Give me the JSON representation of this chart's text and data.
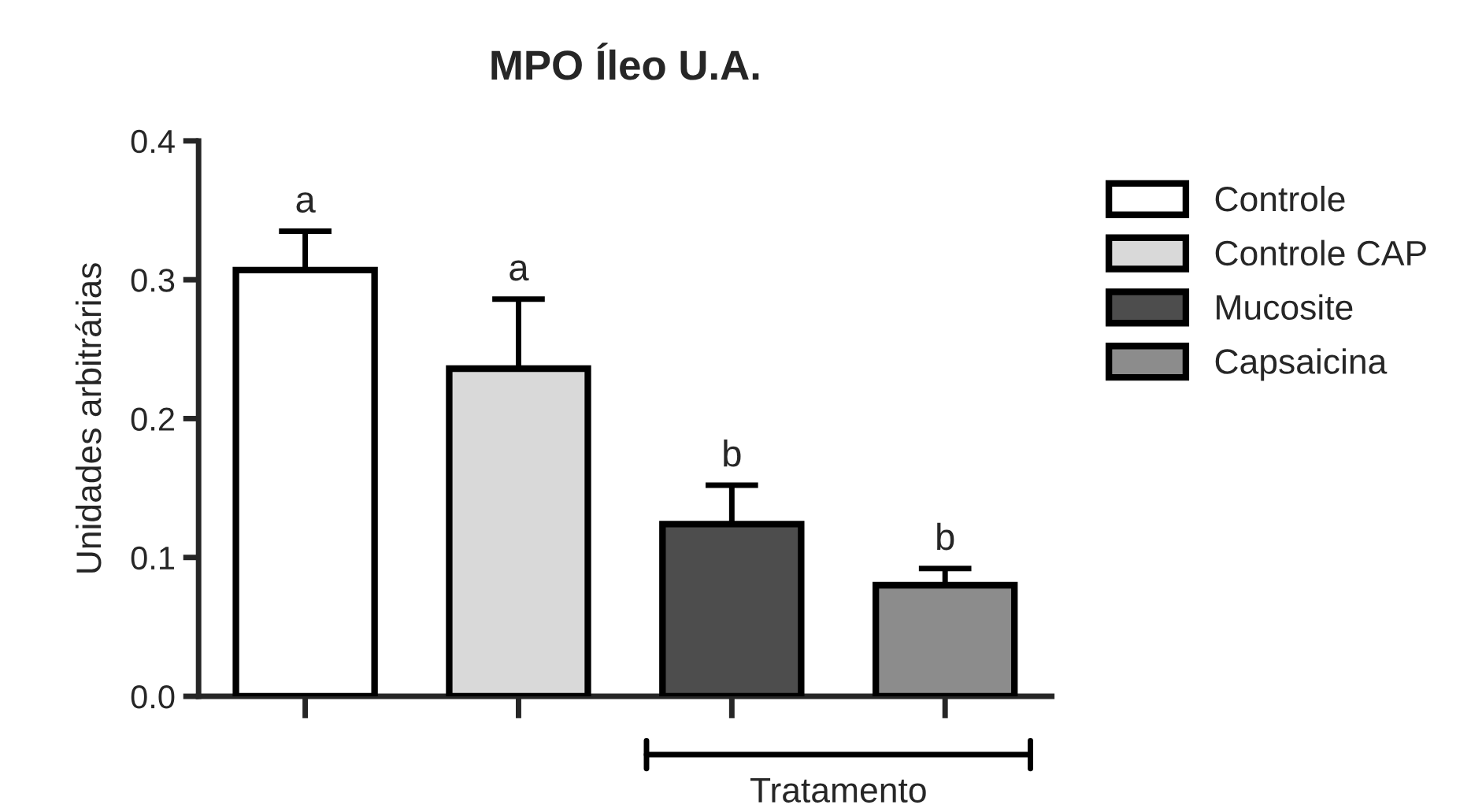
{
  "chart_data": {
    "type": "bar",
    "title": "MPO Íleo U.A.",
    "ylabel": "Unidades arbitrárias",
    "categories": [
      null,
      null,
      null,
      null
    ],
    "series": [
      {
        "name": "Controle",
        "color": "#ffffff",
        "values": [
          0.307,
          null,
          null,
          null
        ],
        "errors": [
          0.028,
          null,
          null,
          null
        ]
      },
      {
        "name": "Controle CAP",
        "color": "#d9d9d9",
        "values": [
          null,
          0.236,
          null,
          null
        ],
        "errors": [
          null,
          0.05,
          null,
          null
        ]
      },
      {
        "name": "Mucosite",
        "color": "#4d4d4d",
        "values": [
          null,
          null,
          0.124,
          null
        ],
        "errors": [
          null,
          null,
          0.028,
          null
        ]
      },
      {
        "name": "Capsaicina",
        "color": "#8c8c8c",
        "values": [
          null,
          null,
          null,
          0.08
        ],
        "errors": [
          null,
          null,
          null,
          0.012
        ]
      }
    ],
    "annotations": [
      "a",
      "a",
      "b",
      "b",
      "Tratamento"
    ],
    "ylim": [
      0,
      0.4
    ],
    "yticks": [
      {
        "value": 0,
        "label": "0.0"
      },
      {
        "value": 0.1,
        "label": "0.1"
      },
      {
        "value": 0.2,
        "label": "0.2"
      },
      {
        "value": 0.3,
        "label": "0.3"
      },
      {
        "value": 0.4,
        "label": "0.4"
      }
    ],
    "grid": false,
    "legend": "right"
  }
}
